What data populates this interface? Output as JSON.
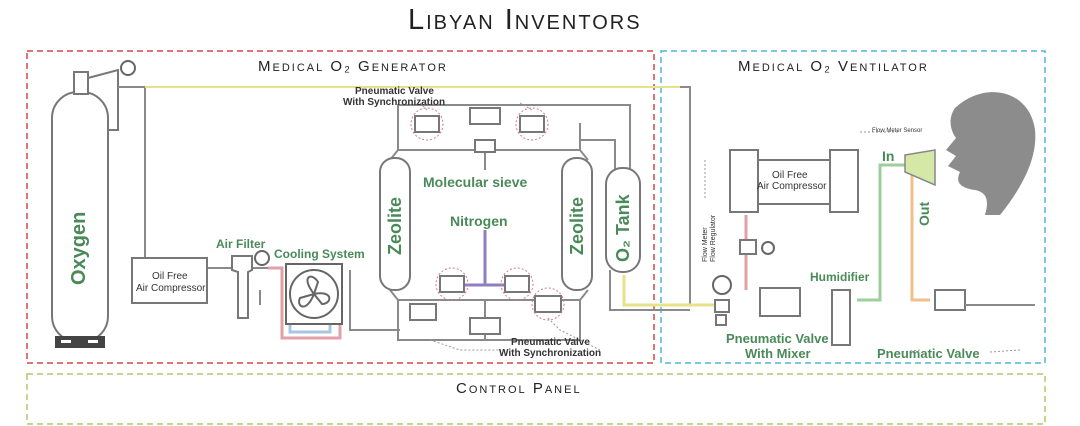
{
  "title": "Libyan Inventors",
  "generator": {
    "heading": "Medical O₂ Generator",
    "oxygen": "Oxygen",
    "compressor": [
      "Oil Free",
      "Air Compressor"
    ],
    "air_filter": "Air Filter",
    "cooling_system": "Cooling System",
    "valve_top": [
      "Pneumatic Valve",
      "With Synchronization"
    ],
    "valve_bottom": [
      "Pneumatic Valve",
      "With Synchronization"
    ],
    "molecular_sieve": "Molecular sieve",
    "nitrogen": "Nitrogen",
    "zeolite_left": "Zeolite",
    "zeolite_right": "Zeolite",
    "o2_tank": "O₂ Tank"
  },
  "ventilator": {
    "heading": "Medical O₂ Ventilator",
    "flow_meter_sensor": "Flow Meter Sensor",
    "in": "In",
    "out": "Out",
    "compressor": [
      "Oil Free",
      "Air Compressor"
    ],
    "flow_meter": "Flow Meter",
    "flow_regulator": "Flow Regulator",
    "humidifier": "Humidifier",
    "valve_mixer": [
      "Pneumatic Valve",
      "With Mixer"
    ],
    "pneumatic_valve": "Pneumatic Valve"
  },
  "control_panel": "Control Panel",
  "colors": {
    "generator_border": "#d0474b",
    "ventilator_border": "#4fb6d8",
    "control_border": "#b9c46a",
    "pipe": "#8a8a8a",
    "label_green": "#4a8a59",
    "oxygen_line": "#e6e28a",
    "cooling_red": "#e0a1ab",
    "cooling_blue": "#a9c5e6",
    "nitrogen_line": "#8d7fc0",
    "humid_line": "#9ccf9c",
    "out_line": "#f0c08a",
    "head": "#8c8c8c"
  }
}
